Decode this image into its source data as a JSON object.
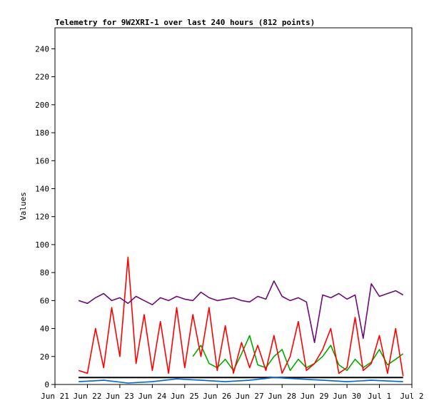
{
  "chart_data": {
    "type": "line",
    "title": "Telemetry for 9W2XRI-1 over last 240 hours (812 points)",
    "xlabel": "",
    "ylabel": "Values",
    "grid": false,
    "legend": "none",
    "xlim": [
      "Jun 21",
      "Jul 2"
    ],
    "ylim": [
      0,
      255
    ],
    "x_ticks": [
      "Jun 21",
      "Jun 22",
      "Jun 23",
      "Jun 24",
      "Jun 25",
      "Jun 26",
      "Jun 27",
      "Jun 28",
      "Jun 29",
      "Jun 30",
      "Jul 1",
      "Jul 2"
    ],
    "y_ticks": [
      0,
      20,
      40,
      60,
      80,
      100,
      120,
      140,
      160,
      180,
      200,
      220,
      240
    ],
    "series": [
      {
        "color": "#000000",
        "x": [
          "Jun 21 17:30",
          "Jul 1 17:30"
        ],
        "values": [
          5,
          5
        ]
      },
      {
        "color": "#0066cc",
        "x": [
          "Jun 21 17:30",
          "Jun 22 12:00",
          "Jun 23 06:00",
          "Jun 24 00:00",
          "Jun 24 18:00",
          "Jun 25 12:00",
          "Jun 26 06:00",
          "Jun 27 00:00",
          "Jun 27 18:00",
          "Jun 28 12:00",
          "Jun 29 06:00",
          "Jun 30 00:00",
          "Jun 30 18:00",
          "Jul 1 17:30"
        ],
        "values": [
          2,
          3,
          1,
          2,
          4,
          3,
          2,
          3,
          5,
          4,
          3,
          2,
          3,
          2
        ]
      },
      {
        "color": "#00aa00",
        "x": [
          "Jun 25 06:00",
          "Jun 25 12:00",
          "Jun 25 18:00",
          "Jun 26 00:00",
          "Jun 26 06:00",
          "Jun 26 12:00",
          "Jun 26 18:00",
          "Jun 27 00:00",
          "Jun 27 06:00",
          "Jun 27 12:00",
          "Jun 27 18:00",
          "Jun 28 00:00",
          "Jun 28 06:00",
          "Jun 28 12:00",
          "Jun 28 18:00",
          "Jun 29 00:00",
          "Jun 29 06:00",
          "Jun 29 12:00",
          "Jun 29 18:00",
          "Jun 30 00:00",
          "Jun 30 06:00",
          "Jun 30 12:00",
          "Jun 30 18:00",
          "Jul 1 00:00",
          "Jul 1 06:00",
          "Jul 1 12:00",
          "Jul 1 17:30"
        ],
        "values": [
          20,
          28,
          15,
          12,
          18,
          10,
          22,
          35,
          14,
          12,
          20,
          25,
          10,
          18,
          12,
          15,
          20,
          28,
          14,
          10,
          18,
          12,
          16,
          25,
          14,
          18,
          22
        ]
      },
      {
        "color": "#ff0000",
        "x": [
          "Jun 21 17:30",
          "Jun 22 00:00",
          "Jun 22 06:00",
          "Jun 22 12:00",
          "Jun 22 18:00",
          "Jun 23 00:00",
          "Jun 23 06:00",
          "Jun 23 12:00",
          "Jun 23 18:00",
          "Jun 24 00:00",
          "Jun 24 06:00",
          "Jun 24 12:00",
          "Jun 24 18:00",
          "Jun 25 00:00",
          "Jun 25 06:00",
          "Jun 25 12:00",
          "Jun 25 18:00",
          "Jun 26 00:00",
          "Jun 26 06:00",
          "Jun 26 12:00",
          "Jun 26 18:00",
          "Jun 27 00:00",
          "Jun 27 06:00",
          "Jun 27 12:00",
          "Jun 27 18:00",
          "Jun 28 00:00",
          "Jun 28 06:00",
          "Jun 28 12:00",
          "Jun 28 18:00",
          "Jun 29 00:00",
          "Jun 29 06:00",
          "Jun 29 12:00",
          "Jun 29 18:00",
          "Jun 30 00:00",
          "Jun 30 06:00",
          "Jun 30 12:00",
          "Jun 30 18:00",
          "Jul 1 00:00",
          "Jul 1 06:00",
          "Jul 1 12:00",
          "Jul 1 17:30"
        ],
        "values": [
          10,
          8,
          40,
          12,
          55,
          20,
          91,
          15,
          50,
          10,
          45,
          8,
          55,
          12,
          50,
          20,
          55,
          10,
          42,
          8,
          30,
          12,
          28,
          10,
          35,
          8,
          20,
          45,
          10,
          15,
          25,
          40,
          8,
          12,
          48,
          10,
          15,
          35,
          8,
          40,
          6
        ]
      },
      {
        "color": "#6e0a78",
        "x": [
          "Jun 21 17:30",
          "Jun 22 00:00",
          "Jun 22 06:00",
          "Jun 22 12:00",
          "Jun 22 18:00",
          "Jun 23 00:00",
          "Jun 23 06:00",
          "Jun 23 12:00",
          "Jun 23 18:00",
          "Jun 24 00:00",
          "Jun 24 06:00",
          "Jun 24 12:00",
          "Jun 24 18:00",
          "Jun 25 00:00",
          "Jun 25 06:00",
          "Jun 25 12:00",
          "Jun 25 18:00",
          "Jun 26 00:00",
          "Jun 26 06:00",
          "Jun 26 12:00",
          "Jun 26 18:00",
          "Jun 27 00:00",
          "Jun 27 06:00",
          "Jun 27 12:00",
          "Jun 27 18:00",
          "Jun 28 00:00",
          "Jun 28 06:00",
          "Jun 28 12:00",
          "Jun 28 18:00",
          "Jun 29 00:00",
          "Jun 29 06:00",
          "Jun 29 12:00",
          "Jun 29 18:00",
          "Jun 30 00:00",
          "Jun 30 06:00",
          "Jun 30 12:00",
          "Jun 30 18:00",
          "Jul 1 00:00",
          "Jul 1 06:00",
          "Jul 1 12:00",
          "Jul 1 17:30"
        ],
        "values": [
          60,
          58,
          62,
          65,
          60,
          62,
          58,
          63,
          60,
          57,
          62,
          60,
          63,
          61,
          60,
          66,
          62,
          60,
          61,
          62,
          60,
          59,
          63,
          61,
          74,
          63,
          60,
          62,
          59,
          30,
          64,
          62,
          65,
          61,
          64,
          33,
          72,
          63,
          65,
          67,
          64
        ]
      }
    ]
  }
}
